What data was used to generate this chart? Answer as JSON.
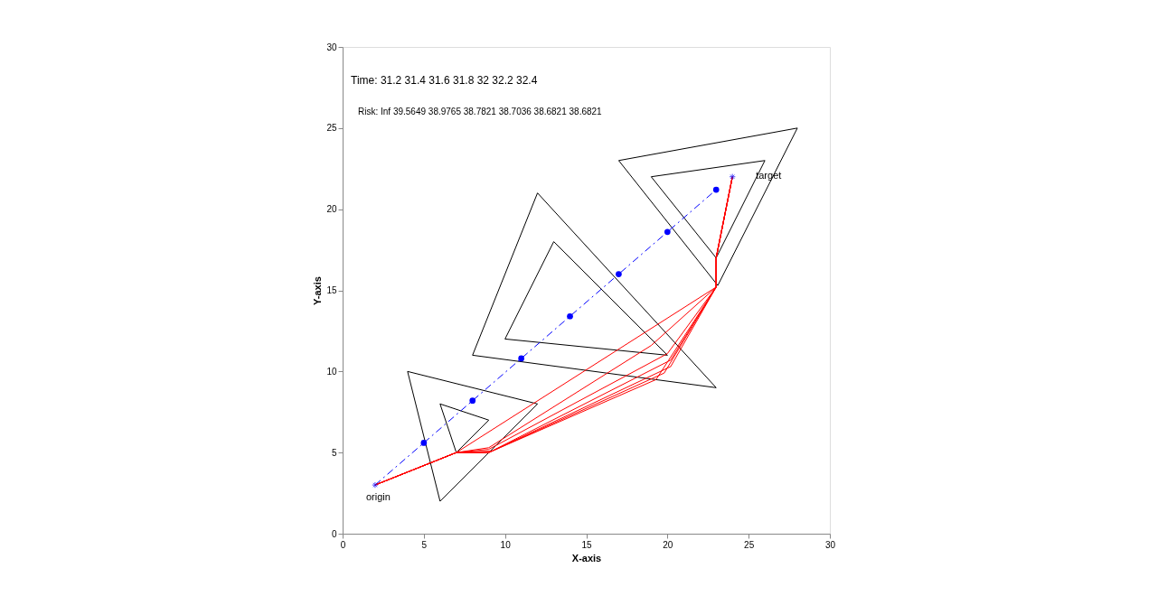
{
  "chart_data": {
    "type": "line",
    "xlabel": "X-axis",
    "ylabel": "Y-axis",
    "xlim": [
      0,
      30
    ],
    "ylim": [
      0,
      30
    ],
    "xticks": [
      0,
      5,
      10,
      15,
      20,
      25,
      30
    ],
    "yticks": [
      0,
      5,
      10,
      15,
      20,
      25,
      30
    ],
    "grid": false,
    "annotations": [
      "Time:  31.2 31.4 31.6 31.8 32 32.2 32.4",
      "Risk:   Inf  39.5649  38.9765  38.7821  38.7036  38.6821  38.6821",
      {
        "text": "origin",
        "x": 2,
        "y": 3
      },
      {
        "text": "target",
        "x": 24,
        "y": 22
      }
    ],
    "series": [
      {
        "color": "#000000",
        "x": [
          4,
          6,
          12
        ],
        "values": [
          10,
          2,
          8
        ]
      },
      {
        "color": "#000000",
        "x": [
          4,
          12
        ],
        "values": [
          10,
          8
        ]
      },
      {
        "color": "#000000",
        "x": [
          6,
          7,
          9
        ],
        "values": [
          8,
          5,
          7
        ]
      },
      {
        "color": "#000000",
        "x": [
          6,
          9
        ],
        "values": [
          8,
          7
        ]
      },
      {
        "color": "#000000",
        "x": [
          8,
          12,
          23
        ],
        "values": [
          11,
          21,
          9
        ]
      },
      {
        "color": "#000000",
        "x": [
          8,
          23
        ],
        "values": [
          11,
          9
        ]
      },
      {
        "color": "#000000",
        "x": [
          10,
          13,
          20
        ],
        "values": [
          12,
          18,
          11
        ]
      },
      {
        "color": "#000000",
        "x": [
          10,
          20
        ],
        "values": [
          12,
          11
        ]
      },
      {
        "color": "#000000",
        "x": [
          17,
          23.1,
          28
        ],
        "values": [
          23,
          15.3,
          25
        ]
      },
      {
        "color": "#000000",
        "x": [
          17,
          28
        ],
        "values": [
          23,
          25
        ]
      },
      {
        "color": "#000000",
        "x": [
          19,
          23,
          26
        ],
        "values": [
          22,
          17,
          23
        ]
      },
      {
        "color": "#000000",
        "x": [
          19,
          26
        ],
        "values": [
          22,
          23
        ]
      },
      {
        "color": "#0000ff",
        "line_style": "dashed",
        "marker": "circle",
        "x": [
          5,
          8,
          11,
          14,
          17,
          20,
          23
        ],
        "values": [
          5.6,
          8.2,
          10.8,
          13.4,
          16,
          18.6,
          21.2
        ]
      },
      {
        "color": "#0000ff",
        "line_style": "dashed",
        "x": [
          2,
          5
        ],
        "values": [
          3,
          5.6
        ]
      },
      {
        "color": "#ff0000",
        "x": [
          2,
          7,
          23,
          23,
          24
        ],
        "values": [
          3,
          5,
          15.2,
          17,
          22
        ]
      },
      {
        "color": "#ff0000",
        "x": [
          2,
          7,
          9,
          19,
          23,
          23,
          24
        ],
        "values": [
          3,
          5,
          5.3,
          11.6,
          15.2,
          17,
          22
        ]
      },
      {
        "color": "#ff0000",
        "x": [
          2,
          7,
          9,
          20,
          23,
          23,
          24
        ],
        "values": [
          3,
          5,
          5.2,
          11.1,
          15.2,
          17,
          22
        ]
      },
      {
        "color": "#ff0000",
        "x": [
          2,
          7,
          9.2,
          20.2,
          23,
          23,
          24
        ],
        "values": [
          3,
          5,
          5.1,
          10.7,
          15.2,
          17,
          22
        ]
      },
      {
        "color": "#ff0000",
        "x": [
          2,
          7,
          9,
          20.2,
          23,
          23,
          24
        ],
        "values": [
          3,
          5,
          5,
          10.3,
          15.2,
          17,
          22
        ]
      },
      {
        "color": "#ff0000",
        "x": [
          2,
          7,
          9,
          19.8,
          23,
          23,
          24
        ],
        "values": [
          3,
          5,
          5,
          9.9,
          15.2,
          17,
          22
        ]
      },
      {
        "color": "#ff0000",
        "x": [
          2,
          7,
          9,
          19.3,
          23,
          23,
          24
        ],
        "values": [
          3,
          5,
          5,
          9.5,
          15.2,
          17,
          22
        ]
      },
      {
        "type": "scatter",
        "color": "#0000ff",
        "marker": "cross",
        "x": [
          2,
          24
        ],
        "values": [
          3,
          22
        ]
      }
    ]
  }
}
